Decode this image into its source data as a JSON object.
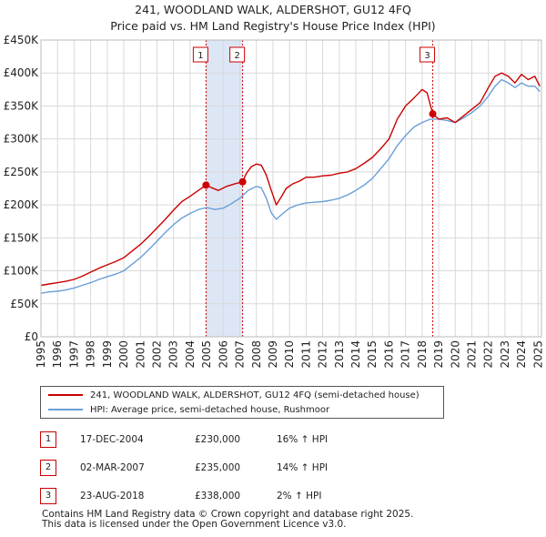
{
  "title": {
    "line1": "241, WOODLAND WALK, ALDERSHOT, GU12 4FQ",
    "line2": "Price paid vs. HM Land Registry's House Price Index (HPI)"
  },
  "chart_data": {
    "type": "line",
    "title": "241, WOODLAND WALK, ALDERSHOT, GU12 4FQ — Price paid vs. HM Land Registry's House Price Index (HPI)",
    "ylim": [
      0,
      450000
    ],
    "xlim": [
      1995,
      2025.2
    ],
    "y_ticks": [
      {
        "value": 0,
        "label": "£0"
      },
      {
        "value": 50000,
        "label": "£50K"
      },
      {
        "value": 100000,
        "label": "£100K"
      },
      {
        "value": 150000,
        "label": "£150K"
      },
      {
        "value": 200000,
        "label": "£200K"
      },
      {
        "value": 250000,
        "label": "£250K"
      },
      {
        "value": 300000,
        "label": "£300K"
      },
      {
        "value": 350000,
        "label": "£350K"
      },
      {
        "value": 400000,
        "label": "£400K"
      },
      {
        "value": 450000,
        "label": "£450K"
      }
    ],
    "x_ticks": [
      "1995",
      "1996",
      "1997",
      "1998",
      "1999",
      "2000",
      "2001",
      "2002",
      "2003",
      "2004",
      "2005",
      "2006",
      "2007",
      "2008",
      "2009",
      "2010",
      "2011",
      "2012",
      "2013",
      "2014",
      "2015",
      "2016",
      "2017",
      "2018",
      "2019",
      "2020",
      "2021",
      "2022",
      "2023",
      "2024",
      "2025"
    ],
    "grid": true,
    "legend_position": "bottom",
    "series": [
      {
        "name": "241, WOODLAND WALK, ALDERSHOT, GU12 4FQ (semi-detached house)",
        "color": "#cc0000",
        "x": [
          1995.0,
          1995.5,
          1996.0,
          1996.5,
          1997.0,
          1997.5,
          1998.0,
          1998.5,
          1999.0,
          1999.5,
          2000.0,
          2000.5,
          2001.0,
          2001.5,
          2002.0,
          2002.5,
          2003.0,
          2003.5,
          2004.0,
          2004.5,
          2004.96,
          2005.3,
          2005.7,
          2006.2,
          2006.7,
          2007.17,
          2007.4,
          2007.7,
          2008.0,
          2008.3,
          2008.6,
          2008.9,
          2009.2,
          2009.5,
          2009.8,
          2010.2,
          2010.6,
          2011.0,
          2011.5,
          2012.0,
          2012.5,
          2013.0,
          2013.5,
          2014.0,
          2014.5,
          2015.0,
          2015.5,
          2016.0,
          2016.5,
          2017.0,
          2017.5,
          2018.0,
          2018.3,
          2018.64,
          2019.0,
          2019.5,
          2020.0,
          2020.5,
          2021.0,
          2021.5,
          2022.0,
          2022.4,
          2022.8,
          2023.2,
          2023.6,
          2024.0,
          2024.4,
          2024.8,
          2025.1
        ],
        "y": [
          78000,
          80000,
          82000,
          84000,
          87000,
          92000,
          98000,
          104000,
          109000,
          114000,
          120000,
          130000,
          140000,
          152000,
          165000,
          178000,
          192000,
          205000,
          213000,
          222000,
          230000,
          226000,
          222000,
          228000,
          232000,
          235000,
          248000,
          258000,
          262000,
          260000,
          245000,
          222000,
          200000,
          212000,
          225000,
          232000,
          236000,
          242000,
          242000,
          244000,
          245000,
          248000,
          250000,
          255000,
          263000,
          272000,
          285000,
          300000,
          330000,
          350000,
          362000,
          375000,
          370000,
          338000,
          330000,
          332000,
          325000,
          335000,
          345000,
          355000,
          378000,
          395000,
          400000,
          395000,
          385000,
          398000,
          390000,
          395000,
          380000
        ]
      },
      {
        "name": "HPI: Average price, semi-detached house, Rushmoor",
        "color": "#6a9fd8",
        "x": [
          1995.0,
          1995.5,
          1996.0,
          1996.5,
          1997.0,
          1997.5,
          1998.0,
          1998.5,
          1999.0,
          1999.5,
          2000.0,
          2000.5,
          2001.0,
          2001.5,
          2002.0,
          2002.5,
          2003.0,
          2003.5,
          2004.0,
          2004.5,
          2005.0,
          2005.5,
          2006.0,
          2006.5,
          2007.0,
          2007.5,
          2008.0,
          2008.3,
          2008.6,
          2008.9,
          2009.2,
          2009.5,
          2010.0,
          2010.5,
          2011.0,
          2011.5,
          2012.0,
          2012.5,
          2013.0,
          2013.5,
          2014.0,
          2014.5,
          2015.0,
          2015.5,
          2016.0,
          2016.5,
          2017.0,
          2017.5,
          2018.0,
          2018.5,
          2019.0,
          2019.5,
          2020.0,
          2020.5,
          2021.0,
          2021.5,
          2022.0,
          2022.4,
          2022.8,
          2023.2,
          2023.6,
          2024.0,
          2024.4,
          2024.8,
          2025.1
        ],
        "y": [
          66000,
          68000,
          69000,
          71000,
          74000,
          78000,
          82000,
          87000,
          91000,
          95000,
          100000,
          110000,
          120000,
          132000,
          145000,
          158000,
          170000,
          180000,
          187000,
          193000,
          196000,
          193000,
          195000,
          202000,
          210000,
          222000,
          228000,
          226000,
          210000,
          188000,
          178000,
          185000,
          195000,
          200000,
          203000,
          204000,
          205000,
          207000,
          210000,
          215000,
          222000,
          230000,
          240000,
          255000,
          270000,
          290000,
          305000,
          318000,
          325000,
          330000,
          330000,
          328000,
          325000,
          332000,
          340000,
          350000,
          365000,
          380000,
          390000,
          385000,
          378000,
          385000,
          380000,
          380000,
          372000
        ]
      }
    ],
    "sales": [
      {
        "label": "1",
        "x": 2004.96,
        "y": 230000
      },
      {
        "label": "2",
        "x": 2007.17,
        "y": 235000
      },
      {
        "label": "3",
        "x": 2018.64,
        "y": 338000
      }
    ],
    "shaded_spans": [
      [
        2004.96,
        2007.17
      ]
    ]
  },
  "legend": {
    "property": "241, WOODLAND WALK, ALDERSHOT, GU12 4FQ (semi-detached house)",
    "hpi": "HPI: Average price, semi-detached house, Rushmoor"
  },
  "sales_table": [
    {
      "num": "1",
      "date": "17-DEC-2004",
      "price": "£230,000",
      "hpi": "16% ↑ HPI"
    },
    {
      "num": "2",
      "date": "02-MAR-2007",
      "price": "£235,000",
      "hpi": "14% ↑ HPI"
    },
    {
      "num": "3",
      "date": "23-AUG-2018",
      "price": "£338,000",
      "hpi": "2% ↑ HPI"
    }
  ],
  "footer": {
    "line1": "Contains HM Land Registry data © Crown copyright and database right 2025.",
    "line2": "This data is licensed under the Open Government Licence v3.0."
  },
  "colors": {
    "property_line": "#cc0000",
    "hpi_line": "#6a9fd8",
    "marker_border": "#cc0000",
    "shade": "#dde6f5",
    "grid": "#d9d9d9"
  }
}
